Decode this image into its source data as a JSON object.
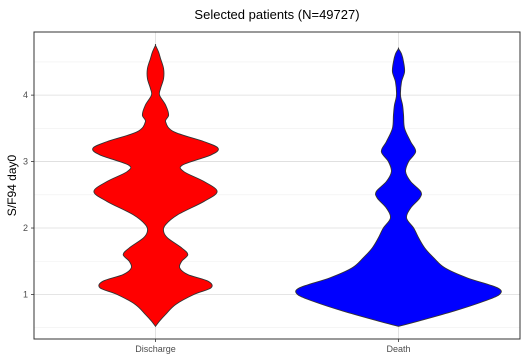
{
  "chart_data": {
    "type": "violin",
    "title": "Selected patients (N=49727)",
    "xlabel": "",
    "ylabel": "S/F94 day0",
    "categories": [
      "Discharge",
      "Death"
    ],
    "ylim": [
      0.33,
      4.95
    ],
    "yticks": [
      1,
      2,
      3,
      4
    ],
    "grid": true,
    "legend": "none",
    "series": [
      {
        "category": "Discharge",
        "color": "#ff0000",
        "y_range": [
          0.52,
          4.75
        ],
        "profile": [
          [
            0.52,
            0.0
          ],
          [
            0.6,
            0.04
          ],
          [
            0.7,
            0.1
          ],
          [
            0.85,
            0.2
          ],
          [
            1.0,
            0.38
          ],
          [
            1.1,
            0.55
          ],
          [
            1.2,
            0.52
          ],
          [
            1.3,
            0.32
          ],
          [
            1.4,
            0.24
          ],
          [
            1.5,
            0.26
          ],
          [
            1.6,
            0.32
          ],
          [
            1.7,
            0.26
          ],
          [
            1.85,
            0.12
          ],
          [
            1.95,
            0.08
          ],
          [
            2.05,
            0.1
          ],
          [
            2.2,
            0.22
          ],
          [
            2.4,
            0.48
          ],
          [
            2.55,
            0.61
          ],
          [
            2.7,
            0.48
          ],
          [
            2.85,
            0.28
          ],
          [
            2.95,
            0.27
          ],
          [
            3.1,
            0.55
          ],
          [
            3.2,
            0.62
          ],
          [
            3.3,
            0.48
          ],
          [
            3.45,
            0.18
          ],
          [
            3.6,
            0.1
          ],
          [
            3.7,
            0.13
          ],
          [
            3.85,
            0.1
          ],
          [
            4.0,
            0.04
          ],
          [
            4.1,
            0.05
          ],
          [
            4.25,
            0.08
          ],
          [
            4.4,
            0.08
          ],
          [
            4.55,
            0.05
          ],
          [
            4.65,
            0.03
          ],
          [
            4.75,
            0.0
          ]
        ]
      },
      {
        "category": "Death",
        "color": "#0000ff",
        "y_range": [
          0.52,
          4.7
        ],
        "profile": [
          [
            0.52,
            0.0
          ],
          [
            0.6,
            0.2
          ],
          [
            0.75,
            0.55
          ],
          [
            0.9,
            0.85
          ],
          [
            1.0,
            1.0
          ],
          [
            1.1,
            0.98
          ],
          [
            1.25,
            0.68
          ],
          [
            1.4,
            0.46
          ],
          [
            1.55,
            0.35
          ],
          [
            1.7,
            0.26
          ],
          [
            1.85,
            0.2
          ],
          [
            2.0,
            0.15
          ],
          [
            2.15,
            0.08
          ],
          [
            2.3,
            0.12
          ],
          [
            2.45,
            0.21
          ],
          [
            2.55,
            0.22
          ],
          [
            2.7,
            0.12
          ],
          [
            2.85,
            0.07
          ],
          [
            3.0,
            0.1
          ],
          [
            3.15,
            0.17
          ],
          [
            3.3,
            0.12
          ],
          [
            3.5,
            0.06
          ],
          [
            3.7,
            0.05
          ],
          [
            3.85,
            0.04
          ],
          [
            4.0,
            0.02
          ],
          [
            4.2,
            0.03
          ],
          [
            4.35,
            0.06
          ],
          [
            4.5,
            0.05
          ],
          [
            4.62,
            0.03
          ],
          [
            4.7,
            0.0
          ]
        ]
      }
    ]
  }
}
